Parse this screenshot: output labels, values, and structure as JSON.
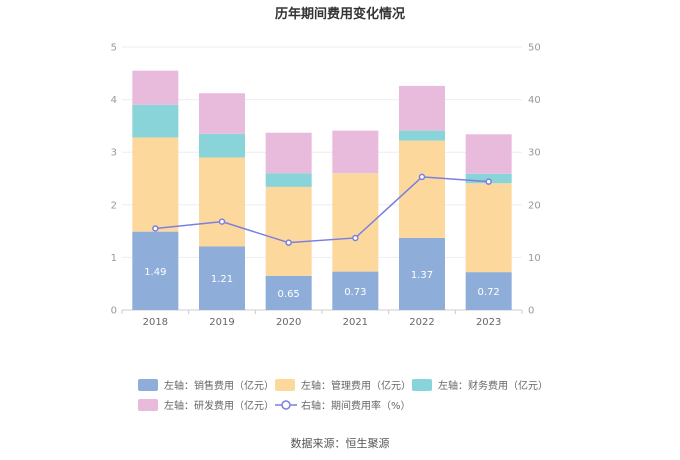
{
  "chart_data": {
    "type": "bar",
    "title": "历年期间费用变化情况",
    "categories": [
      "2018",
      "2019",
      "2020",
      "2021",
      "2022",
      "2023"
    ],
    "y_left": {
      "ylim": [
        0,
        5
      ],
      "ticks": [
        "0",
        "1",
        "2",
        "3",
        "4",
        "5"
      ]
    },
    "y_right": {
      "ylim": [
        0,
        50
      ],
      "ticks": [
        "0",
        "10",
        "20",
        "30",
        "40",
        "50"
      ]
    },
    "series": [
      {
        "name": "左轴：销售费用（亿元）",
        "kind": "stacked-bar",
        "axis": "left",
        "color": "#8eadd9",
        "values": [
          1.49,
          1.21,
          0.65,
          0.73,
          1.37,
          0.72
        ],
        "labels": [
          "1.49",
          "1.21",
          "0.65",
          "0.73",
          "1.37",
          "0.72"
        ]
      },
      {
        "name": "左轴：管理费用（亿元）",
        "kind": "stacked-bar",
        "axis": "left",
        "color": "#fdd89c",
        "values": [
          1.79,
          1.69,
          1.69,
          1.87,
          1.85,
          1.69
        ]
      },
      {
        "name": "左轴：财务费用（亿元）",
        "kind": "stacked-bar",
        "axis": "left",
        "color": "#88d4d8",
        "values": [
          0.62,
          0.45,
          0.26,
          0.0,
          0.19,
          0.18
        ]
      },
      {
        "name": "左轴：研发费用（亿元）",
        "kind": "stacked-bar",
        "axis": "left",
        "color": "#e8bbdc",
        "values": [
          0.65,
          0.77,
          0.77,
          0.81,
          0.85,
          0.75
        ]
      },
      {
        "name": "右轴：期间费用率（%）",
        "kind": "line",
        "axis": "right",
        "color": "#7b7fe0",
        "values": [
          15.5,
          16.8,
          12.8,
          13.7,
          25.3,
          24.4
        ]
      }
    ],
    "grid": true,
    "legend_position": "bottom"
  },
  "source": "数据来源：恒生聚源"
}
